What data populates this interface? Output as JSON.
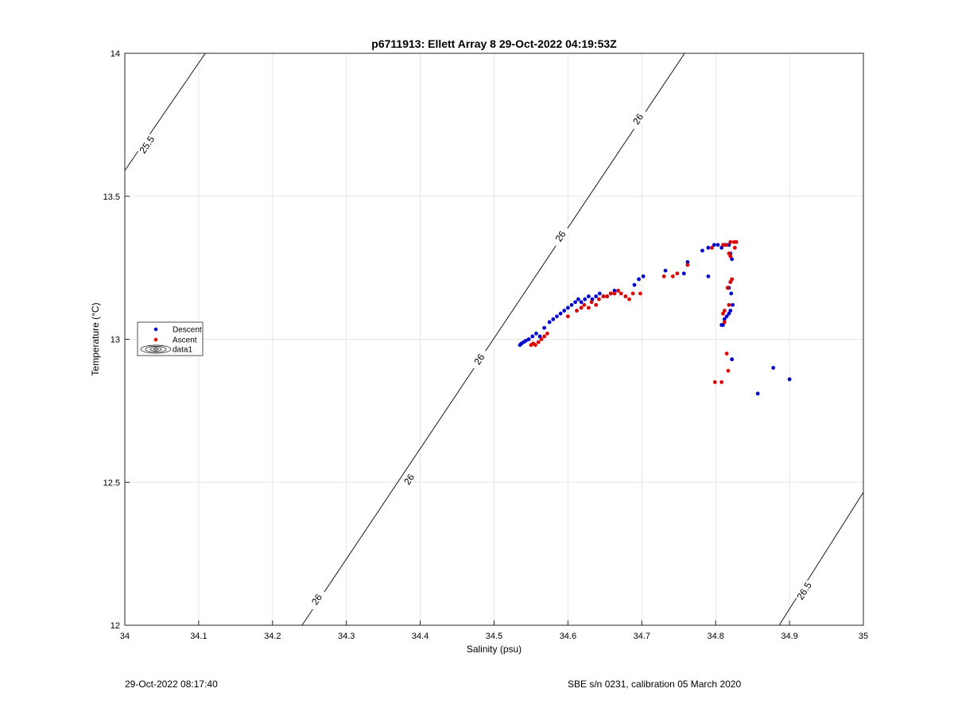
{
  "chart_data": {
    "type": "scatter",
    "title": "p6711913: Ellett Array 8 29-Oct-2022 04:19:53Z",
    "xlabel": "Salinity (psu)",
    "ylabel": "Temperature (°C)",
    "xlim": [
      34,
      35
    ],
    "ylim": [
      12,
      14
    ],
    "xticks": [
      "34",
      "34.1",
      "34.2",
      "34.3",
      "34.4",
      "34.5",
      "34.6",
      "34.7",
      "34.8",
      "34.9",
      "35"
    ],
    "yticks": [
      "12",
      "12.5",
      "13",
      "13.5",
      "14"
    ],
    "grid": true,
    "legend": {
      "placement": "left",
      "entries": [
        "Descent",
        "Ascent",
        "data1"
      ]
    },
    "contours": [
      {
        "level": "25.5",
        "points": [
          [
            34.0,
            13.59
          ],
          [
            34.109,
            14.0
          ]
        ],
        "labels": [
          {
            "text": "25.5",
            "at": [
              34.03,
              13.68
            ]
          }
        ]
      },
      {
        "level": "26",
        "points": [
          [
            34.24,
            12.0
          ],
          [
            34.758,
            14.0
          ]
        ],
        "labels": [
          {
            "text": "26",
            "at": [
              34.26,
              12.09
            ]
          },
          {
            "text": "26",
            "at": [
              34.385,
              12.51
            ]
          },
          {
            "text": "26",
            "at": [
              34.48,
              12.93
            ]
          },
          {
            "text": "26",
            "at": [
              34.59,
              13.36
            ]
          },
          {
            "text": "26",
            "at": [
              34.695,
              13.77
            ]
          }
        ]
      },
      {
        "level": "26.5",
        "points": [
          [
            34.886,
            12.0
          ],
          [
            35.0,
            12.465
          ]
        ],
        "labels": [
          {
            "text": "26.5",
            "at": [
              34.92,
              12.12
            ]
          }
        ]
      }
    ],
    "series": [
      {
        "name": "Descent",
        "color": "#0000cc",
        "x": [
          34.535,
          34.537,
          34.54,
          34.543,
          34.547,
          34.552,
          34.557,
          34.562,
          34.568,
          34.575,
          34.58,
          34.585,
          34.59,
          34.595,
          34.6,
          34.605,
          34.61,
          34.614,
          34.618,
          34.623,
          34.628,
          34.633,
          34.638,
          34.643,
          34.648,
          34.653,
          34.658,
          34.663,
          34.668,
          34.69,
          34.696,
          34.702,
          34.732,
          34.757,
          34.762,
          34.782,
          34.79,
          34.798,
          34.803,
          34.808,
          34.812,
          34.815,
          34.818,
          34.82,
          34.822,
          34.82,
          34.818,
          34.821,
          34.823,
          34.82,
          34.818,
          34.815,
          34.812,
          34.81,
          34.808,
          34.822,
          34.857,
          34.878,
          34.9,
          34.79
        ],
        "y": [
          12.98,
          12.985,
          12.99,
          12.995,
          13.0,
          13.01,
          13.02,
          13.01,
          13.04,
          13.06,
          13.07,
          13.08,
          13.09,
          13.1,
          13.11,
          13.12,
          13.13,
          13.14,
          13.13,
          13.14,
          13.15,
          13.14,
          13.15,
          13.16,
          13.15,
          13.15,
          13.16,
          13.17,
          13.17,
          13.19,
          13.21,
          13.22,
          13.24,
          13.23,
          13.27,
          13.31,
          13.32,
          13.33,
          13.33,
          13.32,
          13.33,
          13.33,
          13.33,
          13.3,
          13.28,
          13.2,
          13.18,
          13.16,
          13.12,
          13.1,
          13.09,
          13.08,
          13.07,
          13.05,
          13.05,
          12.93,
          12.81,
          12.9,
          12.86,
          13.22
        ]
      },
      {
        "name": "Ascent",
        "color": "#dd0000",
        "x": [
          34.55,
          34.553,
          34.556,
          34.56,
          34.564,
          34.568,
          34.572,
          34.6,
          34.612,
          34.618,
          34.622,
          34.628,
          34.632,
          34.638,
          34.642,
          34.648,
          34.653,
          34.658,
          34.663,
          34.668,
          34.672,
          34.678,
          34.683,
          34.688,
          34.698,
          34.73,
          34.742,
          34.748,
          34.762,
          34.795,
          34.81,
          34.815,
          34.82,
          34.825,
          34.828,
          34.818,
          34.82,
          34.822,
          34.82,
          34.816,
          34.812,
          34.818,
          34.81,
          34.812,
          34.815,
          34.799,
          34.808,
          34.817,
          34.826
        ],
        "y": [
          12.98,
          12.985,
          12.98,
          12.99,
          13.0,
          13.01,
          13.02,
          13.08,
          13.1,
          13.11,
          13.12,
          13.11,
          13.13,
          13.12,
          13.14,
          13.15,
          13.15,
          13.16,
          13.16,
          13.17,
          13.16,
          13.15,
          13.14,
          13.16,
          13.16,
          13.22,
          13.22,
          13.23,
          13.26,
          13.32,
          13.33,
          13.33,
          13.34,
          13.34,
          13.34,
          13.3,
          13.29,
          13.21,
          13.2,
          13.18,
          13.1,
          13.12,
          13.09,
          13.06,
          12.95,
          12.85,
          12.85,
          12.89,
          13.32
        ]
      }
    ]
  },
  "footer": {
    "left": "29-Oct-2022 08:17:40",
    "right": "SBE s/n 0231, calibration 05 March 2020"
  }
}
